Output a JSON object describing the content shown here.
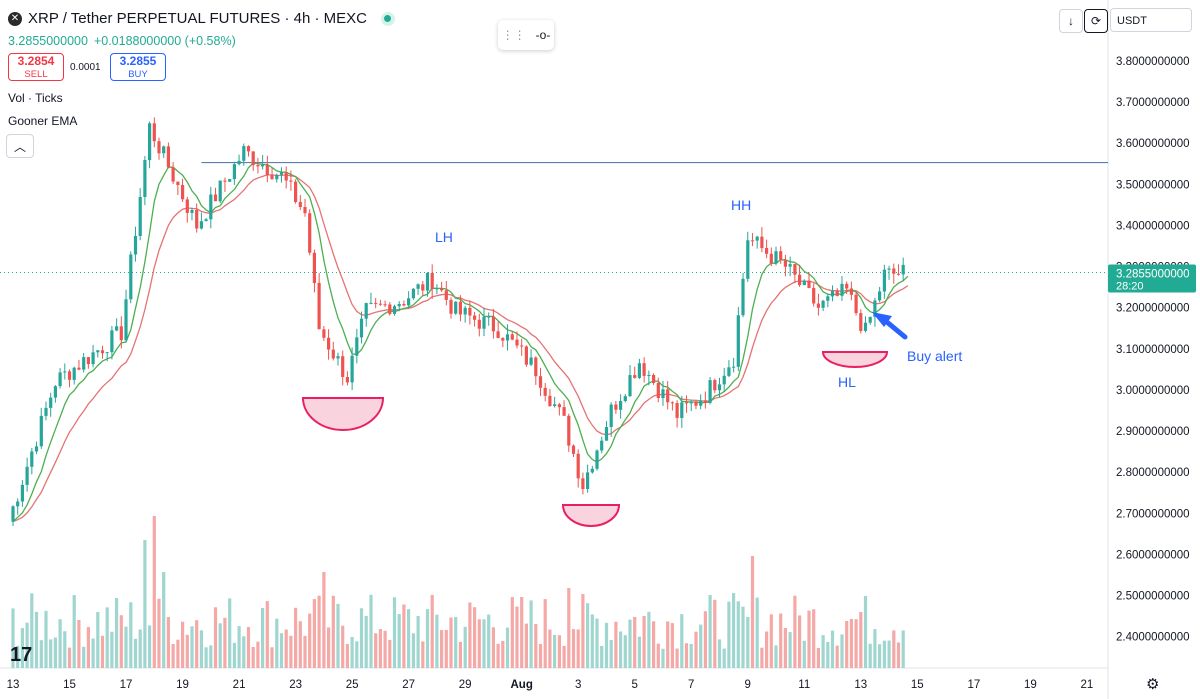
{
  "header": {
    "symbol_icon": "xrp-logo-icon",
    "title": "XRP / Tether PERPETUAL FUTURES · 4h · MEXC",
    "last_price": "3.2855000000",
    "change": "+0.0188000000 (+0.58%)",
    "market_status_color": "#22ab94"
  },
  "trade": {
    "sell_price": "3.2854",
    "sell_label": "SELL",
    "spread": "0.0001",
    "buy_price": "3.2855",
    "buy_label": "BUY"
  },
  "indicators": {
    "vol": "Vol · Ticks",
    "ema": "Gooner EMA"
  },
  "toolbar": {
    "currency": "USDT"
  },
  "annotations": {
    "lh": "LH",
    "hh": "HH",
    "hl": "HL",
    "buy_alert": "Buy alert"
  },
  "chart_data": {
    "type": "candlestick",
    "y_axis_ticks": [
      "3.8000000000",
      "3.7000000000",
      "3.6000000000",
      "3.5000000000",
      "3.4000000000",
      "3.3000000000",
      "3.2000000000",
      "3.1000000000",
      "3.0000000000",
      "2.9000000000",
      "2.8000000000",
      "2.7000000000",
      "2.6000000000",
      "2.5000000000",
      "2.4000000000"
    ],
    "y_axis_values": [
      3.8,
      3.7,
      3.6,
      3.5,
      3.4,
      3.3,
      3.2,
      3.1,
      3.0,
      2.9,
      2.8,
      2.7,
      2.6,
      2.5,
      2.4
    ],
    "x_axis_ticks": [
      "13",
      "15",
      "17",
      "19",
      "21",
      "23",
      "25",
      "27",
      "29",
      "Aug",
      "3",
      "5",
      "7",
      "9",
      "11",
      "13",
      "15",
      "17",
      "19",
      "21"
    ],
    "x_tick_index": [
      0,
      12,
      24,
      36,
      48,
      60,
      72,
      84,
      96,
      108,
      120,
      132,
      144,
      156,
      168,
      180,
      192,
      204,
      216,
      228
    ],
    "current_price_label": "3.2855000000",
    "countdown_label": "28:20",
    "current_price": 3.2855,
    "resistance_level": 3.553,
    "resistance_start_index": 40,
    "bar_count": 190,
    "key_points": [
      {
        "i": 0,
        "price": 2.68
      },
      {
        "i": 10,
        "price": 3.02
      },
      {
        "i": 24,
        "price": 3.14
      },
      {
        "i": 30,
        "price": 3.64
      },
      {
        "i": 40,
        "price": 3.4
      },
      {
        "i": 50,
        "price": 3.58
      },
      {
        "i": 58,
        "price": 3.52
      },
      {
        "i": 63,
        "price": 3.43
      },
      {
        "i": 66,
        "price": 3.15
      },
      {
        "i": 72,
        "price": 3.03
      },
      {
        "i": 76,
        "price": 3.19
      },
      {
        "i": 84,
        "price": 3.22
      },
      {
        "i": 90,
        "price": 3.27
      },
      {
        "i": 95,
        "price": 3.19
      },
      {
        "i": 104,
        "price": 3.15
      },
      {
        "i": 112,
        "price": 3.05
      },
      {
        "i": 118,
        "price": 2.92
      },
      {
        "i": 122,
        "price": 2.77
      },
      {
        "i": 128,
        "price": 2.95
      },
      {
        "i": 134,
        "price": 3.07
      },
      {
        "i": 142,
        "price": 2.94
      },
      {
        "i": 148,
        "price": 2.99
      },
      {
        "i": 154,
        "price": 3.08
      },
      {
        "i": 157,
        "price": 3.37
      },
      {
        "i": 165,
        "price": 3.3
      },
      {
        "i": 172,
        "price": 3.2
      },
      {
        "i": 178,
        "price": 3.24
      },
      {
        "i": 182,
        "price": 3.14
      },
      {
        "i": 186,
        "price": 3.28
      },
      {
        "i": 190,
        "price": 3.285
      }
    ],
    "volume_spikes": [
      {
        "i": 28,
        "v": 0.8
      },
      {
        "i": 30,
        "v": 0.95
      },
      {
        "i": 32,
        "v": 0.6
      },
      {
        "i": 66,
        "v": 0.6
      },
      {
        "i": 118,
        "v": 0.5
      },
      {
        "i": 157,
        "v": 0.7
      },
      {
        "i": 180,
        "v": 0.35
      }
    ],
    "colors": {
      "up": "#26a69a",
      "down": "#ef5350",
      "vol_up": "#9fd6cf",
      "vol_down": "#f4a9a7",
      "ema_fast": "#4caf50",
      "ema_slow": "#e57373",
      "resistance": "#2962ff",
      "price_tag": "#22ab94",
      "marker_fill": "#f8c8d4",
      "marker_stroke": "#e91e63"
    }
  }
}
